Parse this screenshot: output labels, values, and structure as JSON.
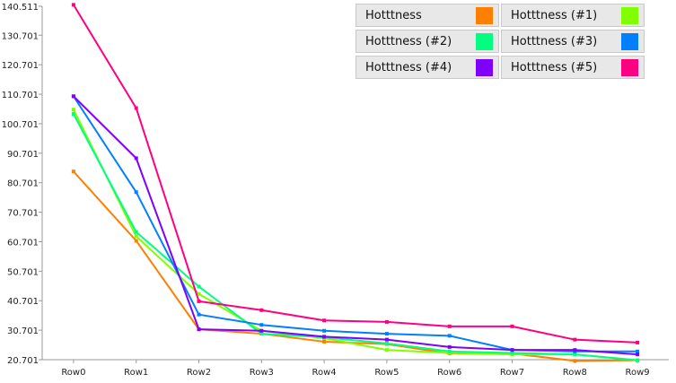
{
  "chart_data": {
    "type": "line",
    "title": "",
    "xlabel": "",
    "ylabel": "",
    "categories": [
      "Row0",
      "Row1",
      "Row2",
      "Row3",
      "Row4",
      "Row5",
      "Row6",
      "Row7",
      "Row8",
      "Row9"
    ],
    "y_ticks": [
      "20.701",
      "30.701",
      "40.701",
      "50.701",
      "60.701",
      "70.701",
      "80.701",
      "90.701",
      "100.701",
      "110.701",
      "120.701",
      "130.701",
      "140.511"
    ],
    "ylim": [
      20.701,
      140.511
    ],
    "grid": false,
    "legend_position": "top-right",
    "series": [
      {
        "name": "Hotttness",
        "color": "#ff8000",
        "values": [
          84.5,
          61.0,
          31.0,
          29.5,
          26.8,
          26.0,
          22.8,
          22.8,
          20.3,
          20.5
        ]
      },
      {
        "name": "Hotttness (#1)",
        "color": "#80ff00",
        "values": [
          105.5,
          62.5,
          43.0,
          30.5,
          28.0,
          24.0,
          23.0,
          22.5,
          22.5,
          20.5
        ]
      },
      {
        "name": "Hotttness (#2)",
        "color": "#00ff80",
        "values": [
          104.0,
          64.0,
          45.5,
          29.5,
          28.3,
          26.2,
          23.5,
          23.0,
          22.5,
          20.5
        ]
      },
      {
        "name": "Hotttness (#3)",
        "color": "#0080ff",
        "values": [
          110.0,
          77.5,
          36.0,
          32.5,
          30.5,
          29.5,
          28.8,
          24.0,
          23.5,
          23.5
        ]
      },
      {
        "name": "Hotttness (#4)",
        "color": "#8000ff",
        "values": [
          110.0,
          89.0,
          31.0,
          30.5,
          28.5,
          27.5,
          25.0,
          24.0,
          24.0,
          22.5
        ]
      },
      {
        "name": "Hotttness (#5)",
        "color": "#ff0080",
        "values": [
          141.0,
          106.0,
          40.5,
          37.5,
          34.0,
          33.5,
          32.0,
          32.0,
          27.5,
          26.5
        ]
      }
    ]
  },
  "legend": {
    "rows": [
      [
        {
          "label": "Hotttness",
          "color": "#ff8000"
        },
        {
          "label": "Hotttness (#1)",
          "color": "#80ff00"
        }
      ],
      [
        {
          "label": "Hotttness (#2)",
          "color": "#00ff80"
        },
        {
          "label": "Hotttness (#3)",
          "color": "#0080ff"
        }
      ],
      [
        {
          "label": "Hotttness (#4)",
          "color": "#8000ff"
        },
        {
          "label": "Hotttness (#5)",
          "color": "#ff0080"
        }
      ]
    ]
  }
}
